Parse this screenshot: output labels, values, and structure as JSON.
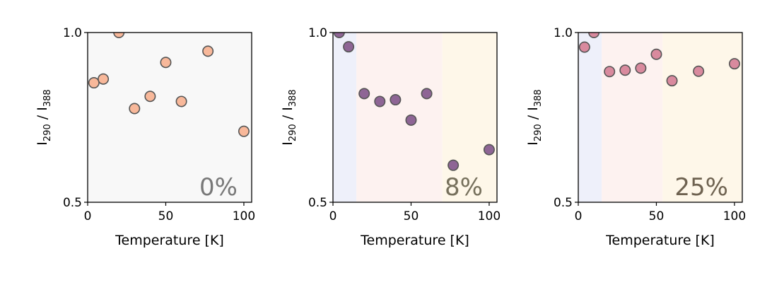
{
  "chart_data": [
    {
      "type": "scatter",
      "xlabel": "Temperature [K]",
      "ylabel": {
        "base": "I",
        "num_sub": "290",
        "sep": " / ",
        "den_base": "I",
        "den_sub": "388"
      },
      "ylim": [
        0.5,
        1.0
      ],
      "xlim": [
        0,
        105
      ],
      "xticks": [
        "0",
        "50",
        "100"
      ],
      "yticks": [
        "0.5",
        "1.0"
      ],
      "annotation": "0%",
      "annotation_color": "#787878",
      "background": "#f8f8f8",
      "bands": [],
      "marker_color": "#f8b89a",
      "x": [
        4,
        10,
        20,
        30,
        40,
        50,
        60,
        77,
        100
      ],
      "y": [
        0.852,
        0.863,
        1.0,
        0.776,
        0.812,
        0.912,
        0.797,
        0.945,
        0.709
      ]
    },
    {
      "type": "scatter",
      "xlabel": "Temperature [K]",
      "ylabel": {
        "base": "I",
        "num_sub": "290",
        "sep": " / ",
        "den_base": "I",
        "den_sub": "388"
      },
      "ylim": [
        0.5,
        1.0
      ],
      "xlim": [
        0,
        105
      ],
      "xticks": [
        "0",
        "50",
        "100"
      ],
      "yticks": [
        "0.5",
        "1.0"
      ],
      "annotation": "8%",
      "annotation_color": "#76705c",
      "background": "#ffffff",
      "bands": [
        {
          "from": 0,
          "to": 15,
          "color": "#eef0fa"
        },
        {
          "from": 15,
          "to": 70,
          "color": "#fdf2f0"
        },
        {
          "from": 70,
          "to": 105,
          "color": "#fef7e9"
        }
      ],
      "marker_color": "#8e6595",
      "x": [
        4,
        10,
        20,
        30,
        40,
        50,
        60,
        77,
        100
      ],
      "y": [
        1.0,
        0.958,
        0.82,
        0.797,
        0.802,
        0.742,
        0.82,
        0.609,
        0.655
      ]
    },
    {
      "type": "scatter",
      "xlabel": "Temperature [K]",
      "ylabel": {
        "base": "I",
        "num_sub": "290",
        "sep": " / ",
        "den_base": "I",
        "den_sub": "388"
      },
      "ylim": [
        0.5,
        1.0
      ],
      "xlim": [
        0,
        105
      ],
      "xticks": [
        "0",
        "50",
        "100"
      ],
      "yticks": [
        "0.5",
        "1.0"
      ],
      "annotation": "25%",
      "annotation_color": "#6e6250",
      "background": "#ffffff",
      "bands": [
        {
          "from": 0,
          "to": 15,
          "color": "#eef0fa"
        },
        {
          "from": 15,
          "to": 54,
          "color": "#fdf2f0"
        },
        {
          "from": 54,
          "to": 105,
          "color": "#fef7e9"
        }
      ],
      "marker_color": "#d98a9e",
      "x": [
        4,
        10,
        20,
        30,
        40,
        50,
        60,
        77,
        100
      ],
      "y": [
        0.957,
        1.0,
        0.885,
        0.889,
        0.895,
        0.936,
        0.858,
        0.886,
        0.908
      ]
    }
  ]
}
